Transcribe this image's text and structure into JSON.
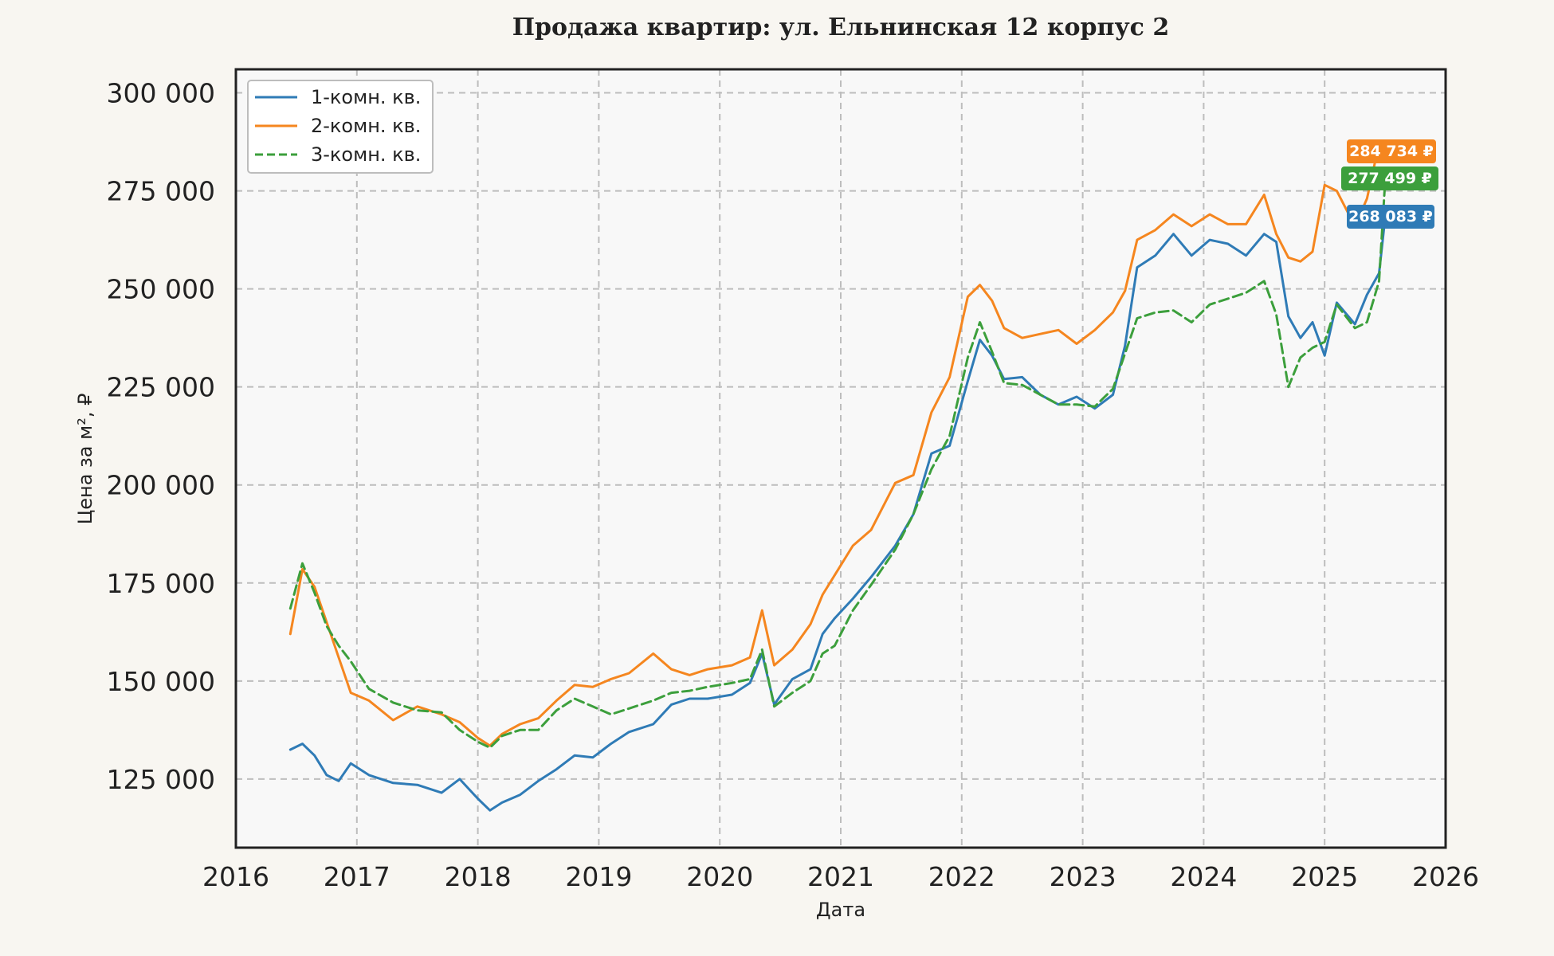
{
  "chart_data": {
    "type": "line",
    "title": "Продажа квартир: ул. Ельнинская 12 корпус 2",
    "xlabel": "Дата",
    "ylabel": "Цена за м², ₽",
    "xlim": [
      2016,
      2026
    ],
    "ylim": [
      107500,
      306000
    ],
    "x_ticks": [
      2016,
      2017,
      2018,
      2019,
      2020,
      2021,
      2022,
      2023,
      2024,
      2025,
      2026
    ],
    "x_tick_labels": [
      "2016",
      "2017",
      "2018",
      "2019",
      "2020",
      "2021",
      "2022",
      "2023",
      "2024",
      "2025",
      "2026"
    ],
    "y_ticks": [
      125000,
      150000,
      175000,
      200000,
      225000,
      250000,
      275000,
      300000
    ],
    "y_tick_labels": [
      "125 000",
      "150 000",
      "175 000",
      "200 000",
      "225 000",
      "250 000",
      "275 000",
      "300 000"
    ],
    "grid": true,
    "legend_position": "top-left",
    "series": [
      {
        "name": "1-комн. кв.",
        "color": "#2f7bb6",
        "dash": "solid",
        "latest_label": "268 083 ₽",
        "x": [
          2016.45,
          2016.55,
          2016.65,
          2016.75,
          2016.85,
          2016.95,
          2017.1,
          2017.3,
          2017.5,
          2017.7,
          2017.85,
          2018.0,
          2018.1,
          2018.2,
          2018.35,
          2018.5,
          2018.65,
          2018.8,
          2018.95,
          2019.1,
          2019.25,
          2019.45,
          2019.6,
          2019.75,
          2019.9,
          2020.1,
          2020.25,
          2020.35,
          2020.45,
          2020.6,
          2020.75,
          2020.85,
          2020.95,
          2021.1,
          2021.25,
          2021.45,
          2021.6,
          2021.75,
          2021.9,
          2022.05,
          2022.15,
          2022.25,
          2022.35,
          2022.5,
          2022.65,
          2022.8,
          2022.95,
          2023.1,
          2023.25,
          2023.35,
          2023.45,
          2023.6,
          2023.75,
          2023.9,
          2024.05,
          2024.2,
          2024.35,
          2024.5,
          2024.6,
          2024.7,
          2024.8,
          2024.9,
          2025.0,
          2025.1,
          2025.25,
          2025.35,
          2025.45,
          2025.5
        ],
        "y": [
          132500,
          134000,
          131000,
          126000,
          124500,
          129000,
          126000,
          124000,
          123500,
          121500,
          125000,
          120000,
          117000,
          119000,
          121000,
          124500,
          127500,
          131000,
          130500,
          134000,
          137000,
          139000,
          144000,
          145500,
          145500,
          146500,
          149500,
          157000,
          144000,
          150500,
          153000,
          162000,
          166000,
          171000,
          176500,
          184500,
          192500,
          208000,
          210000,
          226500,
          237000,
          233000,
          227000,
          227500,
          223000,
          220500,
          222500,
          219500,
          223000,
          235500,
          255500,
          258500,
          264000,
          258500,
          262500,
          261500,
          258500,
          264000,
          262000,
          243000,
          237500,
          241500,
          233000,
          246500,
          241000,
          248500,
          254000,
          268083
        ]
      },
      {
        "name": "2-комн. кв.",
        "color": "#f5861f",
        "dash": "solid",
        "latest_label": "284 734 ₽",
        "x": [
          2016.45,
          2016.55,
          2016.65,
          2016.75,
          2016.85,
          2016.95,
          2017.1,
          2017.3,
          2017.5,
          2017.7,
          2017.85,
          2018.0,
          2018.1,
          2018.2,
          2018.35,
          2018.5,
          2018.65,
          2018.8,
          2018.95,
          2019.1,
          2019.25,
          2019.45,
          2019.6,
          2019.75,
          2019.9,
          2020.1,
          2020.25,
          2020.35,
          2020.45,
          2020.6,
          2020.75,
          2020.85,
          2020.95,
          2021.1,
          2021.25,
          2021.45,
          2021.6,
          2021.75,
          2021.9,
          2022.05,
          2022.15,
          2022.25,
          2022.35,
          2022.5,
          2022.65,
          2022.8,
          2022.95,
          2023.1,
          2023.25,
          2023.35,
          2023.45,
          2023.6,
          2023.75,
          2023.9,
          2024.05,
          2024.2,
          2024.35,
          2024.5,
          2024.6,
          2024.7,
          2024.8,
          2024.9,
          2025.0,
          2025.1,
          2025.25,
          2025.35,
          2025.45,
          2025.5
        ],
        "y": [
          162000,
          178500,
          174000,
          165000,
          156000,
          147000,
          145000,
          140000,
          143500,
          141500,
          139500,
          135500,
          133500,
          136500,
          139000,
          140500,
          145000,
          149000,
          148500,
          150500,
          152000,
          157000,
          153000,
          151500,
          153000,
          154000,
          156000,
          168000,
          154000,
          158000,
          164500,
          172000,
          177000,
          184500,
          188500,
          200500,
          202500,
          218500,
          227500,
          248000,
          251000,
          247000,
          240000,
          237500,
          238500,
          239500,
          236000,
          239500,
          244000,
          249500,
          262500,
          265000,
          269000,
          266000,
          269000,
          266500,
          266500,
          274000,
          264000,
          258000,
          257000,
          259500,
          276500,
          275000,
          266000,
          273000,
          287000,
          284734
        ]
      },
      {
        "name": "3-комн. кв.",
        "color": "#3c9f3c",
        "dash": "dashed",
        "latest_label": "277 499 ₽",
        "x": [
          2016.45,
          2016.55,
          2016.65,
          2016.75,
          2016.85,
          2016.95,
          2017.1,
          2017.3,
          2017.5,
          2017.7,
          2017.85,
          2018.0,
          2018.1,
          2018.2,
          2018.35,
          2018.5,
          2018.65,
          2018.8,
          2018.95,
          2019.1,
          2019.25,
          2019.45,
          2019.6,
          2019.75,
          2019.9,
          2020.1,
          2020.25,
          2020.35,
          2020.45,
          2020.6,
          2020.75,
          2020.85,
          2020.95,
          2021.1,
          2021.25,
          2021.45,
          2021.6,
          2021.75,
          2021.9,
          2022.05,
          2022.15,
          2022.25,
          2022.35,
          2022.5,
          2022.65,
          2022.8,
          2022.95,
          2023.1,
          2023.25,
          2023.35,
          2023.45,
          2023.6,
          2023.75,
          2023.9,
          2024.05,
          2024.2,
          2024.35,
          2024.5,
          2024.6,
          2024.7,
          2024.8,
          2024.9,
          2025.0,
          2025.1,
          2025.25,
          2025.35,
          2025.45,
          2025.5
        ],
        "y": [
          168500,
          180000,
          172500,
          164000,
          159000,
          155000,
          148000,
          144500,
          142500,
          142000,
          137500,
          134500,
          133000,
          136000,
          137500,
          137500,
          142500,
          145500,
          143500,
          141500,
          143000,
          145000,
          147000,
          147500,
          148500,
          149500,
          150500,
          158000,
          143500,
          147000,
          150000,
          157000,
          159000,
          168000,
          174500,
          183500,
          192500,
          204000,
          212500,
          232500,
          241500,
          234000,
          226000,
          225500,
          223000,
          220500,
          220500,
          220000,
          224500,
          233500,
          242500,
          244000,
          244500,
          241500,
          246000,
          247500,
          249000,
          252000,
          243500,
          225000,
          232500,
          235000,
          236500,
          246000,
          240000,
          241500,
          252000,
          277499
        ]
      }
    ]
  }
}
